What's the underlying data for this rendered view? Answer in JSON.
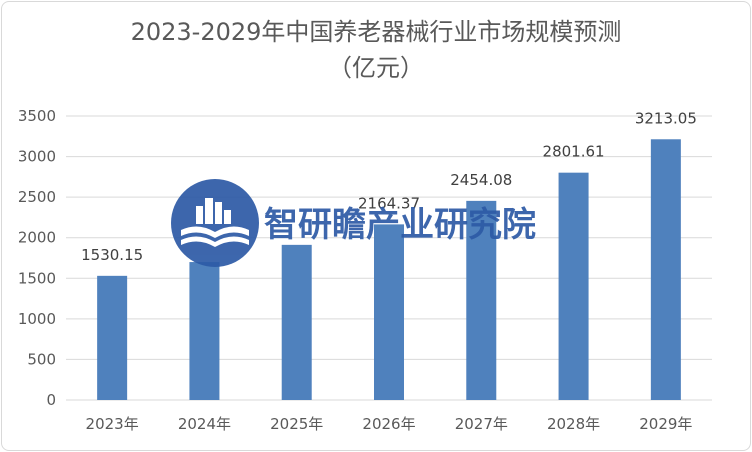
{
  "chart_data": {
    "type": "bar",
    "title": "2023-2029年中国养老器械行业市场规模预测",
    "subtitle": "（亿元）",
    "categories": [
      "2023年",
      "2024年",
      "2025年",
      "2026年",
      "2027年",
      "2028年",
      "2029年"
    ],
    "values": [
      1530.15,
      1700,
      1912,
      2164.37,
      2454.08,
      2801.61,
      3213.05
    ],
    "data_labels": [
      "1530.15",
      "",
      "",
      "2164.37",
      "2454.08",
      "2801.61",
      "3213.05"
    ],
    "yticks": [
      0,
      500,
      1000,
      1500,
      2000,
      2500,
      3000,
      3500
    ],
    "ylim": [
      0,
      3500
    ],
    "grid": true,
    "legend": "none",
    "bar_color": "#4f81bd",
    "grid_color": "#d9d9d9"
  },
  "watermark": {
    "text": "智研瞻产业研究院",
    "color": "#2d5aa6",
    "icon": "city-book-logo-icon"
  }
}
